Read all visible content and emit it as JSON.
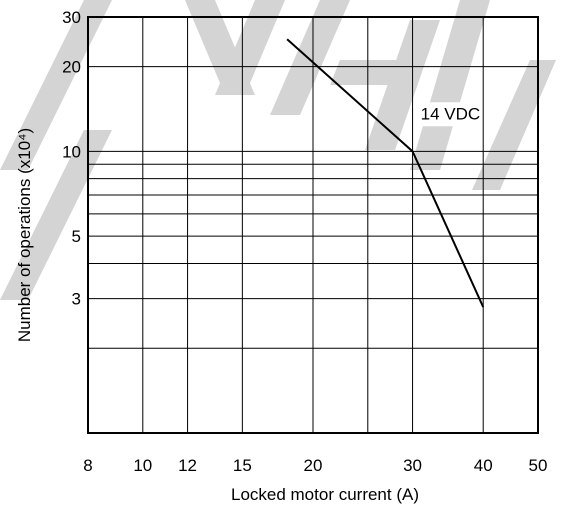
{
  "chart_data": {
    "type": "line",
    "title": "",
    "xlabel": "Locked motor current (A)",
    "ylabel": "Number of operations (x10⁴)",
    "x_scale": "log",
    "y_scale": "log",
    "xlim": [
      8,
      50
    ],
    "ylim": [
      1,
      30
    ],
    "x_ticks": [
      8,
      10,
      12,
      15,
      20,
      30,
      40,
      50
    ],
    "x_tick_labels": [
      "8",
      "10",
      "12",
      "15",
      "20",
      "30",
      "40",
      "50"
    ],
    "x_gridlines": [
      10,
      12,
      15,
      20,
      25,
      30,
      40
    ],
    "y_ticks": [
      3,
      5,
      10,
      20,
      30
    ],
    "y_tick_labels": [
      "3",
      "5",
      "10",
      "20",
      "30"
    ],
    "y_gridlines": [
      2,
      3,
      4,
      5,
      6,
      7,
      8,
      9,
      10,
      20
    ],
    "grid": true,
    "series": [
      {
        "name": "14 VDC",
        "color": "#000000",
        "points": [
          {
            "x": 18,
            "y": 25
          },
          {
            "x": 30,
            "y": 10
          },
          {
            "x": 40,
            "y": 2.8
          }
        ]
      }
    ],
    "annotations": [
      {
        "text": "14 VDC",
        "x": 31,
        "y": 13
      }
    ]
  },
  "watermark": {
    "text": "NEW",
    "color": "#d4d4d4"
  }
}
